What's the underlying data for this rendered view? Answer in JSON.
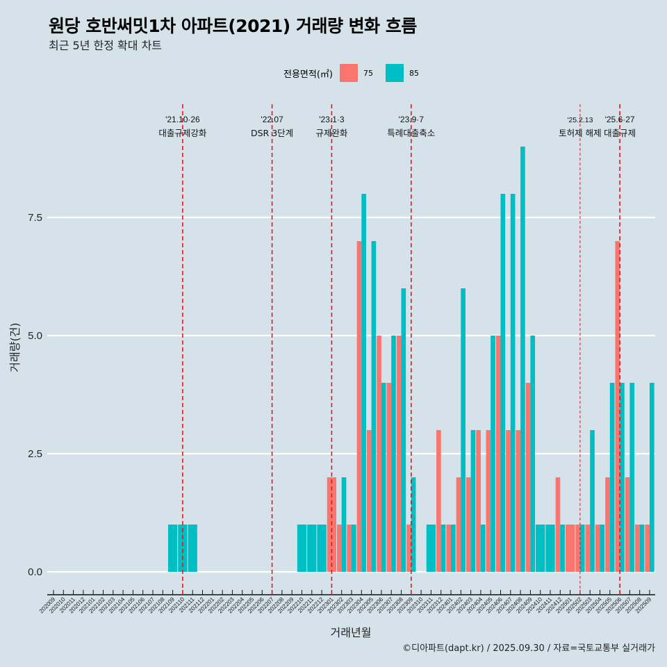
{
  "chart_data": {
    "type": "bar",
    "title": "원당 호반써밋1차 아파트(2021) 거래량 변화 흐름",
    "subtitle": "최근 5년 한정 확대 차트",
    "xlabel": "거래년월",
    "ylabel": "거래량(건)",
    "ylim": [
      0,
      9.5
    ],
    "yticks": [
      0.0,
      2.5,
      5.0,
      7.5
    ],
    "ytick_labels": [
      "0.0",
      "2.5",
      "5.0",
      "7.5"
    ],
    "grid": "horizontal-major",
    "legend": {
      "title": "전용면적(㎡)",
      "position": "top"
    },
    "categories": [
      "202009",
      "202010",
      "202011",
      "202012",
      "202101",
      "202102",
      "202103",
      "202104",
      "202105",
      "202106",
      "202107",
      "202108",
      "202109",
      "202110",
      "202111",
      "202112",
      "202201",
      "202202",
      "202203",
      "202204",
      "202205",
      "202206",
      "202207",
      "202208",
      "202209",
      "202210",
      "202211",
      "202212",
      "202301",
      "202302",
      "202303",
      "202304",
      "202305",
      "202306",
      "202307",
      "202308",
      "202309",
      "202310",
      "202311",
      "202312",
      "202401",
      "202402",
      "202403",
      "202404",
      "202405",
      "202406",
      "202407",
      "202408",
      "202409",
      "202410",
      "202411",
      "202412",
      "202501",
      "202502",
      "202503",
      "202504",
      "202505",
      "202506",
      "202507",
      "202508",
      "202509"
    ],
    "series": [
      {
        "name": "75",
        "color": "#f8766d",
        "values": [
          0,
          0,
          0,
          0,
          0,
          0,
          0,
          0,
          0,
          0,
          0,
          0,
          0,
          0,
          0,
          0,
          0,
          0,
          0,
          0,
          0,
          0,
          0,
          0,
          0,
          0,
          0,
          0,
          2,
          1,
          1,
          7,
          3,
          5,
          4,
          5,
          1,
          0,
          0,
          3,
          1,
          2,
          2,
          3,
          3,
          5,
          3,
          3,
          4,
          0,
          0,
          2,
          1,
          1,
          1,
          1,
          2,
          7,
          2,
          1,
          1
        ]
      },
      {
        "name": "85",
        "color": "#00bfc4",
        "values": [
          0,
          0,
          0,
          0,
          0,
          0,
          0,
          0,
          0,
          0,
          0,
          0,
          1,
          1,
          1,
          0,
          0,
          0,
          0,
          0,
          0,
          0,
          0,
          0,
          0,
          1,
          1,
          1,
          0,
          2,
          1,
          8,
          7,
          4,
          5,
          6,
          2,
          0,
          1,
          1,
          1,
          6,
          3,
          1,
          5,
          8,
          8,
          9,
          5,
          1,
          1,
          1,
          0,
          1,
          3,
          1,
          4,
          4,
          4,
          1,
          4
        ]
      }
    ],
    "annotations": [
      {
        "at": "202110",
        "date": "'21.10·26",
        "label": "대출규제강화",
        "style": "dashed"
      },
      {
        "at": "202207",
        "date": "'22.07",
        "label": "DSR 3단계",
        "style": "dashed"
      },
      {
        "at": "202301",
        "date": "'23.1·3",
        "label": "규제완화",
        "style": "dashed"
      },
      {
        "at": "202309",
        "date": "'23.9·7",
        "label": "특례대출축소",
        "style": "dashed"
      },
      {
        "at": "202502",
        "date": "'25.2.13",
        "label": "토허제 해제",
        "style": "dashed-thin"
      },
      {
        "at": "202506",
        "date": "'25.6·27",
        "label": "대출규제",
        "style": "dashed"
      }
    ]
  },
  "caption": "©디아파트(dapt.kr) / 2025.09.30 / 자료=국토교통부 실거래가"
}
